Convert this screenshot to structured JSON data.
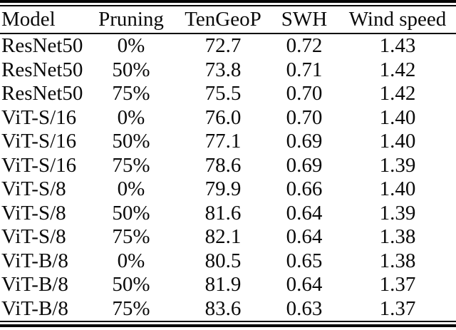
{
  "figure": {
    "kind": "academic-paper-results-table",
    "background_color": "#ffffff",
    "text_color": "#0a0a0a",
    "rule_color": "#060606"
  },
  "table": {
    "columns": [
      "Model",
      "Pruning",
      "TenGeoP",
      "SWH",
      "Wind speed"
    ],
    "column_keys": [
      "model",
      "pruning",
      "tengeop",
      "swh",
      "wind-speed"
    ],
    "rows": [
      [
        "ResNet50",
        "0%",
        "72.7",
        "0.72",
        "1.43"
      ],
      [
        "ResNet50",
        "50%",
        "73.8",
        "0.71",
        "1.42"
      ],
      [
        "ResNet50",
        "75%",
        "75.5",
        "0.70",
        "1.42"
      ],
      [
        "ViT-S/16",
        "0%",
        "76.0",
        "0.70",
        "1.40"
      ],
      [
        "ViT-S/16",
        "50%",
        "77.1",
        "0.69",
        "1.40"
      ],
      [
        "ViT-S/16",
        "75%",
        "78.6",
        "0.69",
        "1.39"
      ],
      [
        "ViT-S/8",
        "0%",
        "79.9",
        "0.66",
        "1.40"
      ],
      [
        "ViT-S/8",
        "50%",
        "81.6",
        "0.64",
        "1.39"
      ],
      [
        "ViT-S/8",
        "75%",
        "82.1",
        "0.64",
        "1.38"
      ],
      [
        "ViT-B/8",
        "0%",
        "80.5",
        "0.65",
        "1.38"
      ],
      [
        "ViT-B/8",
        "50%",
        "81.9",
        "0.64",
        "1.37"
      ],
      [
        "ViT-B/8",
        "75%",
        "83.6",
        "0.63",
        "1.37"
      ]
    ]
  },
  "chart_data": {
    "type": "table",
    "title": "",
    "columns": [
      "Model",
      "Pruning",
      "TenGeoP",
      "SWH",
      "Wind speed"
    ],
    "rows": [
      [
        "ResNet50",
        "0%",
        72.7,
        0.72,
        1.43
      ],
      [
        "ResNet50",
        "50%",
        73.8,
        0.71,
        1.42
      ],
      [
        "ResNet50",
        "75%",
        75.5,
        0.7,
        1.42
      ],
      [
        "ViT-S/16",
        "0%",
        76.0,
        0.7,
        1.4
      ],
      [
        "ViT-S/16",
        "50%",
        77.1,
        0.69,
        1.4
      ],
      [
        "ViT-S/16",
        "75%",
        78.6,
        0.69,
        1.39
      ],
      [
        "ViT-S/8",
        "0%",
        79.9,
        0.66,
        1.4
      ],
      [
        "ViT-S/8",
        "50%",
        81.6,
        0.64,
        1.39
      ],
      [
        "ViT-S/8",
        "75%",
        82.1,
        0.64,
        1.38
      ],
      [
        "ViT-B/8",
        "0%",
        80.5,
        0.65,
        1.38
      ],
      [
        "ViT-B/8",
        "50%",
        81.9,
        0.64,
        1.37
      ],
      [
        "ViT-B/8",
        "75%",
        83.6,
        0.63,
        1.37
      ]
    ]
  }
}
